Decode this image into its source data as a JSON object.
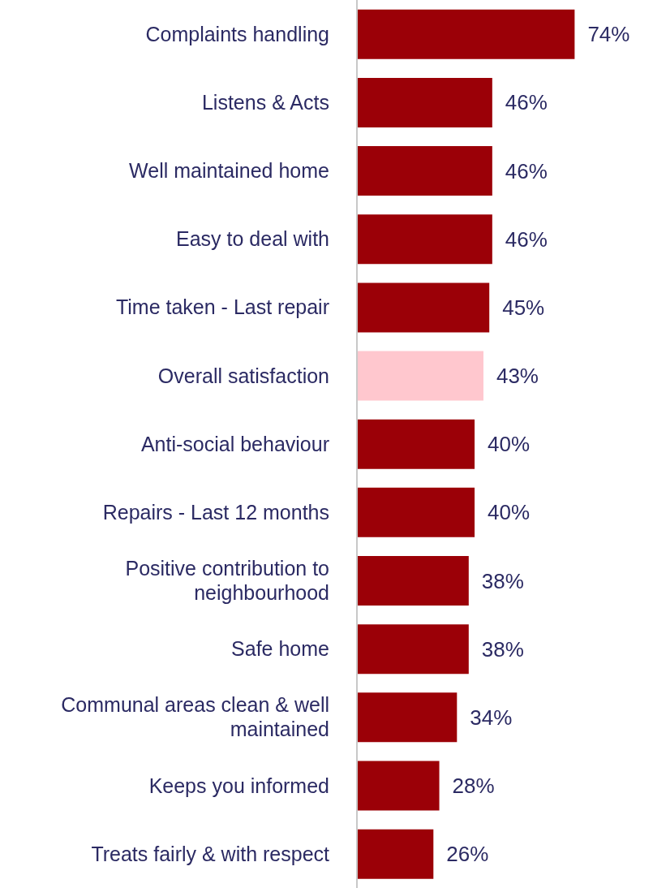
{
  "chart_data": {
    "type": "bar",
    "orientation": "horizontal",
    "categories": [
      "Complaints handling",
      "Listens & Acts",
      "Well maintained home",
      "Easy to deal with",
      "Time taken - Last repair",
      "Overall satisfaction",
      "Anti-social behaviour",
      "Repairs - Last 12 months",
      "Positive contribution to neighbourhood",
      "Safe home",
      "Communal areas clean & well maintained",
      "Keeps you informed",
      "Treats fairly & with respect"
    ],
    "values": [
      74,
      46,
      46,
      46,
      45,
      43,
      40,
      40,
      38,
      38,
      34,
      28,
      26
    ],
    "value_labels": [
      "74%",
      "46%",
      "46%",
      "46%",
      "45%",
      "43%",
      "40%",
      "40%",
      "38%",
      "38%",
      "34%",
      "28%",
      "26%"
    ],
    "colors": [
      "#9b0007",
      "#9b0007",
      "#9b0007",
      "#9b0007",
      "#9b0007",
      "#ffc7ce",
      "#9b0007",
      "#9b0007",
      "#9b0007",
      "#9b0007",
      "#9b0007",
      "#9b0007",
      "#9b0007"
    ],
    "grid": false,
    "legend": false
  }
}
